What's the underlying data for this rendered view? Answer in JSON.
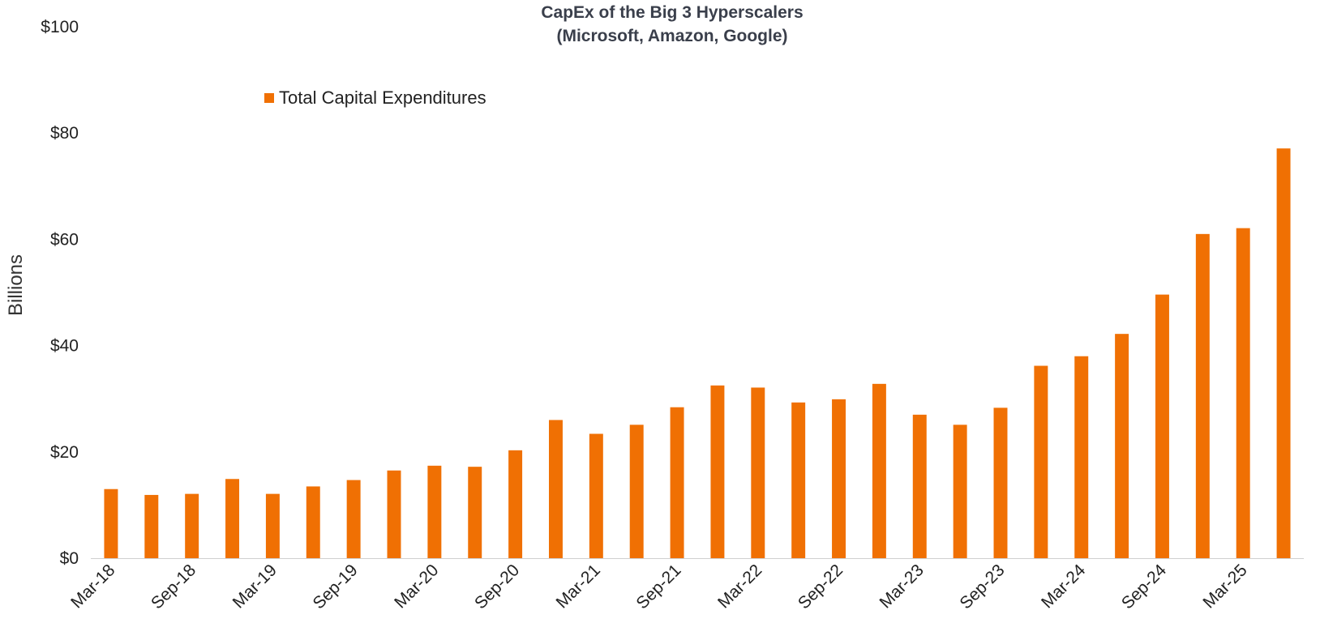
{
  "chart_data": {
    "type": "bar",
    "title_lines": [
      "CapEx of the Big 3 Hyperscalers",
      "(Microsoft, Amazon, Google)"
    ],
    "ylabel": "Billions",
    "xlabel": "",
    "ylim": [
      0,
      100
    ],
    "y_ticks": [
      "$0",
      "$20",
      "$40",
      "$60",
      "$80",
      "$100"
    ],
    "y_tick_values": [
      0,
      20,
      40,
      60,
      80,
      100
    ],
    "legend": {
      "label": "Total Capital Expenditures",
      "position": "top-left"
    },
    "bar_color": "#f07003",
    "grid": false,
    "categories": [
      "Mar-18",
      "Jun-18",
      "Sep-18",
      "Dec-18",
      "Mar-19",
      "Jun-19",
      "Sep-19",
      "Dec-19",
      "Mar-20",
      "Jun-20",
      "Sep-20",
      "Dec-20",
      "Mar-21",
      "Jun-21",
      "Sep-21",
      "Dec-21",
      "Mar-22",
      "Jun-22",
      "Sep-22",
      "Dec-22",
      "Mar-23",
      "Jun-23",
      "Sep-23",
      "Dec-23",
      "Mar-24",
      "Jun-24",
      "Sep-24",
      "Dec-24",
      "Mar-25",
      "Jun-25"
    ],
    "x_tick_labels": [
      "Mar-18",
      "Sep-18",
      "Mar-19",
      "Sep-19",
      "Mar-20",
      "Sep-20",
      "Mar-21",
      "Sep-21",
      "Mar-22",
      "Sep-22",
      "Mar-23",
      "Sep-23",
      "Mar-24",
      "Sep-24",
      "Mar-25"
    ],
    "series": [
      {
        "name": "Total Capital Expenditures",
        "values": [
          13.0,
          11.9,
          12.1,
          14.9,
          12.1,
          13.5,
          14.7,
          16.5,
          17.4,
          17.2,
          20.3,
          26.0,
          23.4,
          25.1,
          28.4,
          32.5,
          32.1,
          29.3,
          29.9,
          32.8,
          27.0,
          25.1,
          28.3,
          36.2,
          38.0,
          42.2,
          49.6,
          61.0,
          62.1,
          77.1
        ]
      }
    ]
  }
}
